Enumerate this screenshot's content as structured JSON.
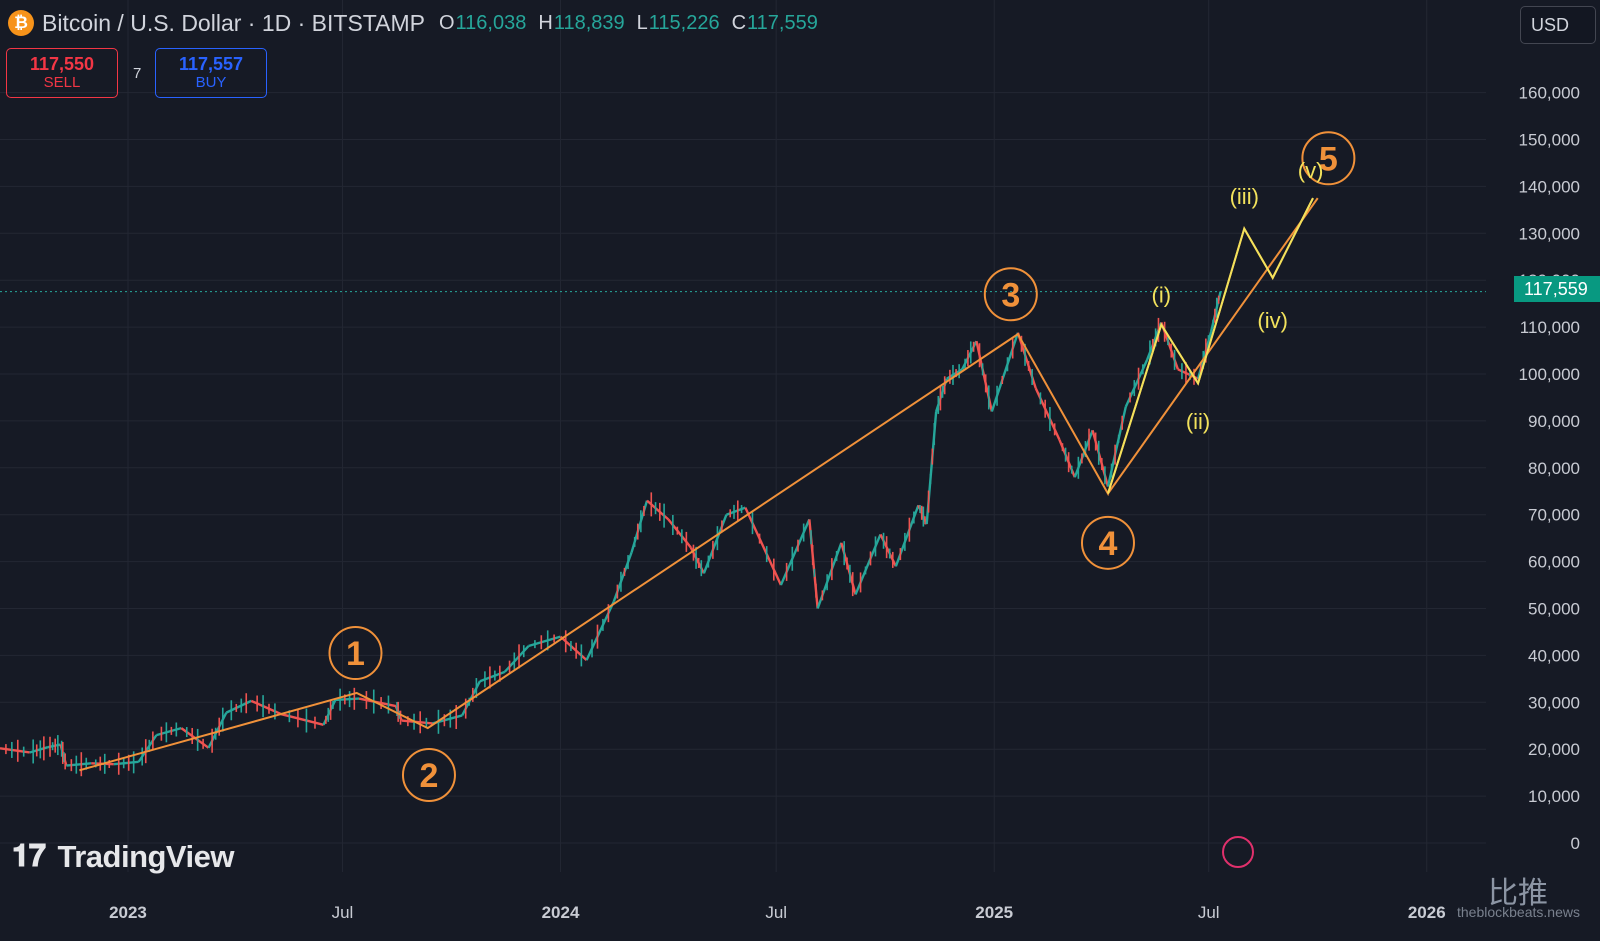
{
  "header": {
    "coin_icon": "₿",
    "symbol_title": "Bitcoin / U.S. Dollar · 1D · BITSTAMP",
    "ohlc": [
      {
        "key": "O",
        "value": "116,038"
      },
      {
        "key": "H",
        "value": "118,839"
      },
      {
        "key": "L",
        "value": "115,226"
      },
      {
        "key": "C",
        "value": "117,559"
      }
    ]
  },
  "trade": {
    "sell_price": "117,550",
    "sell_label": "SELL",
    "spread": "7",
    "buy_price": "117,557",
    "buy_label": "BUY"
  },
  "currency": "USD",
  "last_price_tag": "117,559",
  "logo_text": "TradingView",
  "watermark": {
    "brand": "比推",
    "site": "theblockbeats.news"
  },
  "colors": {
    "background": "#161a25",
    "grid": "#232733",
    "up": "#26a69a",
    "down": "#ef5350",
    "wave_orange": "#f0913a",
    "wave_yellow": "#f2e25c",
    "price_tag": "#089981",
    "axis_text": "#c8cbd3"
  },
  "chart_data": {
    "type": "line",
    "title": "Bitcoin / U.S. Dollar · 1D · BITSTAMP",
    "xlim": [
      "2022-09-15",
      "2026-02-20"
    ],
    "ylim": [
      0,
      165000
    ],
    "y_ticks": [
      0,
      10000,
      20000,
      30000,
      40000,
      50000,
      60000,
      70000,
      80000,
      90000,
      100000,
      110000,
      120000,
      130000,
      140000,
      150000,
      160000
    ],
    "y_tick_labels": [
      "0",
      "10,000",
      "20,000",
      "30,000",
      "40,000",
      "50,000",
      "60,000",
      "70,000",
      "80,000",
      "90,000",
      "100,000",
      "110,000",
      "120,000",
      "130,000",
      "140,000",
      "150,000",
      "160,000"
    ],
    "x_ticks": [
      {
        "date": "2023-01-01",
        "label": "2023",
        "bold": true
      },
      {
        "date": "2023-07-01",
        "label": "Jul",
        "bold": false
      },
      {
        "date": "2024-01-01",
        "label": "2024",
        "bold": true
      },
      {
        "date": "2024-07-01",
        "label": "Jul",
        "bold": false
      },
      {
        "date": "2025-01-01",
        "label": "2025",
        "bold": true
      },
      {
        "date": "2025-07-01",
        "label": "Jul",
        "bold": false
      },
      {
        "date": "2026-01-01",
        "label": "2026",
        "bold": true
      }
    ],
    "last_price": 117559,
    "price_series": [
      {
        "date": "2022-09-15",
        "value": 20200
      },
      {
        "date": "2022-10-10",
        "value": 19300
      },
      {
        "date": "2022-10-25",
        "value": 20400
      },
      {
        "date": "2022-11-05",
        "value": 21000
      },
      {
        "date": "2022-11-10",
        "value": 16500
      },
      {
        "date": "2022-12-01",
        "value": 17000
      },
      {
        "date": "2022-12-20",
        "value": 16800
      },
      {
        "date": "2023-01-10",
        "value": 17300
      },
      {
        "date": "2023-01-25",
        "value": 23000
      },
      {
        "date": "2023-02-15",
        "value": 24500
      },
      {
        "date": "2023-03-10",
        "value": 20300
      },
      {
        "date": "2023-03-25",
        "value": 27800
      },
      {
        "date": "2023-04-15",
        "value": 30300
      },
      {
        "date": "2023-05-10",
        "value": 27500
      },
      {
        "date": "2023-06-15",
        "value": 25200
      },
      {
        "date": "2023-06-25",
        "value": 30500
      },
      {
        "date": "2023-07-15",
        "value": 30800
      },
      {
        "date": "2023-08-15",
        "value": 29200
      },
      {
        "date": "2023-08-20",
        "value": 26100
      },
      {
        "date": "2023-09-15",
        "value": 25500
      },
      {
        "date": "2023-10-10",
        "value": 27200
      },
      {
        "date": "2023-10-25",
        "value": 34500
      },
      {
        "date": "2023-11-15",
        "value": 36500
      },
      {
        "date": "2023-12-05",
        "value": 42000
      },
      {
        "date": "2024-01-01",
        "value": 44000
      },
      {
        "date": "2024-01-23",
        "value": 39000
      },
      {
        "date": "2024-02-15",
        "value": 51500
      },
      {
        "date": "2024-03-01",
        "value": 62000
      },
      {
        "date": "2024-03-14",
        "value": 73000
      },
      {
        "date": "2024-04-01",
        "value": 69000
      },
      {
        "date": "2024-04-20",
        "value": 63000
      },
      {
        "date": "2024-05-01",
        "value": 57500
      },
      {
        "date": "2024-05-20",
        "value": 70000
      },
      {
        "date": "2024-06-05",
        "value": 71500
      },
      {
        "date": "2024-07-05",
        "value": 55000
      },
      {
        "date": "2024-07-29",
        "value": 69000
      },
      {
        "date": "2024-08-05",
        "value": 50000
      },
      {
        "date": "2024-08-25",
        "value": 64000
      },
      {
        "date": "2024-09-06",
        "value": 53000
      },
      {
        "date": "2024-09-27",
        "value": 65800
      },
      {
        "date": "2024-10-10",
        "value": 59000
      },
      {
        "date": "2024-10-29",
        "value": 72000
      },
      {
        "date": "2024-11-05",
        "value": 68000
      },
      {
        "date": "2024-11-13",
        "value": 92000
      },
      {
        "date": "2024-11-22",
        "value": 99000
      },
      {
        "date": "2024-12-05",
        "value": 101000
      },
      {
        "date": "2024-12-17",
        "value": 107000
      },
      {
        "date": "2024-12-30",
        "value": 92000
      },
      {
        "date": "2025-01-21",
        "value": 108800
      },
      {
        "date": "2025-02-05",
        "value": 97000
      },
      {
        "date": "2025-02-25",
        "value": 86000
      },
      {
        "date": "2025-03-10",
        "value": 78000
      },
      {
        "date": "2025-03-25",
        "value": 88000
      },
      {
        "date": "2025-04-07",
        "value": 76000
      },
      {
        "date": "2025-04-22",
        "value": 93000
      },
      {
        "date": "2025-05-10",
        "value": 103000
      },
      {
        "date": "2025-05-22",
        "value": 111000
      },
      {
        "date": "2025-06-05",
        "value": 101000
      },
      {
        "date": "2025-06-22",
        "value": 99000
      },
      {
        "date": "2025-07-03",
        "value": 109000
      },
      {
        "date": "2025-07-11",
        "value": 117559
      }
    ],
    "wave_lines": [
      {
        "name": "orange",
        "color_key": "wave_orange",
        "points": [
          {
            "date": "2022-11-21",
            "value": 15500
          },
          {
            "date": "2023-07-13",
            "value": 32000
          },
          {
            "date": "2023-09-11",
            "value": 24500
          },
          {
            "date": "2025-01-21",
            "value": 108500
          },
          {
            "date": "2025-04-07",
            "value": 74500
          },
          {
            "date": "2025-05-22",
            "value": 110500
          },
          {
            "date": "2025-06-22",
            "value": 98000
          },
          {
            "date": "2025-07-31",
            "value": 131000
          },
          {
            "date": "2025-08-24",
            "value": 120500
          },
          {
            "date": "2025-09-27",
            "value": 137500
          }
        ]
      },
      {
        "name": "orange-channel",
        "color_key": "wave_orange",
        "points": [
          {
            "date": "2025-04-07",
            "value": 74500
          },
          {
            "date": "2025-10-01",
            "value": 137500
          }
        ]
      }
    ],
    "wave_labels": [
      {
        "label": "1",
        "kind": "major",
        "date": "2023-07-12",
        "value": 40500
      },
      {
        "label": "2",
        "kind": "major",
        "date": "2023-09-12",
        "value": 14500
      },
      {
        "label": "3",
        "kind": "major",
        "date": "2025-01-15",
        "value": 117000
      },
      {
        "label": "4",
        "kind": "major",
        "date": "2025-04-07",
        "value": 64000
      },
      {
        "label": "5",
        "kind": "major",
        "date": "2025-10-10",
        "value": 146000
      },
      {
        "label": "(i)",
        "kind": "minor",
        "date": "2025-05-22",
        "value": 117000
      },
      {
        "label": "(ii)",
        "kind": "minor",
        "date": "2025-06-22",
        "value": 90000
      },
      {
        "label": "(iii)",
        "kind": "minor",
        "date": "2025-07-31",
        "value": 138000
      },
      {
        "label": "(iv)",
        "kind": "minor",
        "date": "2025-08-24",
        "value": 111500
      },
      {
        "label": "(v)",
        "kind": "minor",
        "date": "2025-09-25",
        "value": 143500
      }
    ]
  }
}
